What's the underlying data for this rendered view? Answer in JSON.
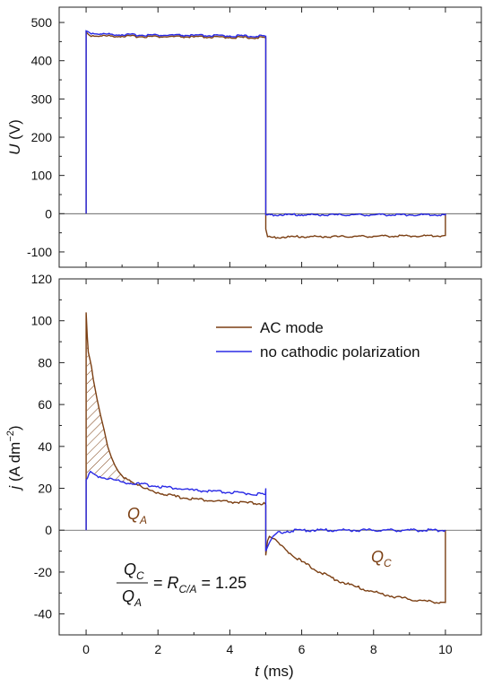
{
  "chart_data": [
    {
      "type": "line",
      "panel": "top",
      "ylabel": "U (V)",
      "ylabel_main": "U",
      "ylabel_unit": " (V)",
      "xlim": [
        -0.75,
        11
      ],
      "ylim": [
        -140,
        540
      ],
      "yticks": [
        -100,
        0,
        100,
        200,
        300,
        400,
        500
      ],
      "ytick_labels": [
        "-100",
        "0",
        "100",
        "200",
        "300",
        "400",
        "500"
      ],
      "xticks": [
        0,
        2,
        4,
        6,
        8,
        10
      ],
      "zero_line": true,
      "series": [
        {
          "key": "ac",
          "color": "#7b3f13",
          "x": [
            0,
            0,
            0.05,
            0.1,
            0.4,
            1.0,
            2.0,
            3.0,
            4.0,
            4.99,
            5.0,
            5.0,
            5.05,
            5.2,
            6.0,
            7.0,
            8.0,
            9.0,
            9.9,
            9.99,
            10.0,
            10.0
          ],
          "y": [
            0,
            475,
            470,
            466,
            465,
            464,
            463,
            462,
            461,
            460,
            460,
            -40,
            -60,
            -62,
            -60,
            -60,
            -59,
            -58,
            -58,
            -57,
            -57,
            0
          ]
        },
        {
          "key": "nocp",
          "color": "#2a2ae6",
          "x": [
            0,
            0,
            0.05,
            0.1,
            0.4,
            1.0,
            2.0,
            3.0,
            4.0,
            4.99,
            5.0,
            5.0,
            5.05,
            6.0,
            7.0,
            8.0,
            9.0,
            9.99,
            10.0,
            10.0
          ],
          "y": [
            0,
            478,
            476,
            473,
            470,
            468,
            467,
            466,
            465,
            464,
            464,
            -3,
            -3,
            -3,
            -3,
            -3,
            -3,
            -3,
            -3,
            0
          ]
        }
      ]
    },
    {
      "type": "line",
      "panel": "bottom",
      "xlabel": "t (ms)",
      "xlabel_main": "t",
      "xlabel_unit": " (ms)",
      "ylabel": "j (A dm−2)",
      "ylabel_main": "j",
      "ylabel_unit": " (A dm",
      "ylabel_sup": "−2",
      "ylabel_close": ")",
      "xlim": [
        -0.75,
        11
      ],
      "ylim": [
        -50,
        120
      ],
      "yticks": [
        -40,
        -20,
        0,
        20,
        40,
        60,
        80,
        100,
        120
      ],
      "ytick_labels": [
        "-40",
        "-20",
        "0",
        "20",
        "40",
        "60",
        "80",
        "100",
        "120"
      ],
      "xticks": [
        0,
        2,
        4,
        6,
        8,
        10
      ],
      "xtick_labels": [
        "0",
        "2",
        "4",
        "6",
        "8",
        "10"
      ],
      "zero_line": true,
      "series": [
        {
          "key": "ac",
          "name": "AC mode",
          "color": "#7b3f13",
          "x": [
            0,
            0,
            0.03,
            0.06,
            0.1,
            0.15,
            0.2,
            0.3,
            0.4,
            0.5,
            0.6,
            0.7,
            0.8,
            0.9,
            1.0,
            1.2,
            1.4,
            1.6,
            1.8,
            2.0,
            2.5,
            3.0,
            3.5,
            4.0,
            4.5,
            4.99,
            5.0,
            5.0,
            5.05,
            5.1,
            5.2,
            5.4,
            5.6,
            6.0,
            6.5,
            7.0,
            7.5,
            8.0,
            8.5,
            9.0,
            9.5,
            9.99,
            10.0,
            10.0
          ],
          "y": [
            0,
            104,
            93,
            85,
            82,
            78,
            72,
            63,
            55,
            48,
            40,
            35,
            31,
            28,
            26,
            24,
            22,
            20,
            19,
            18,
            16,
            15,
            14,
            13.5,
            13,
            12.5,
            12,
            -12,
            -5,
            -3,
            -4,
            -7,
            -10,
            -15,
            -20,
            -24,
            -27,
            -29.5,
            -31.5,
            -33,
            -34,
            -34.5,
            -34.5,
            0
          ]
        },
        {
          "key": "nocp",
          "name": "no cathodic polarization",
          "color": "#2a2ae6",
          "x": [
            0,
            0,
            0.04,
            0.08,
            0.12,
            0.2,
            0.3,
            0.5,
            0.8,
            1.0,
            1.5,
            2.0,
            2.5,
            3.0,
            3.5,
            4.0,
            4.5,
            4.99,
            5.0,
            5.0,
            5.1,
            5.2,
            5.3,
            5.6,
            6.0,
            7.0,
            8.0,
            9.0,
            10.0,
            10.0
          ],
          "y": [
            0,
            24,
            25,
            27,
            28,
            27,
            26,
            25,
            24,
            23,
            22,
            21,
            20,
            19,
            18.5,
            18,
            17.5,
            17,
            20,
            -10,
            -6,
            -3,
            -1.5,
            -0.5,
            0,
            0,
            0,
            0,
            0,
            0
          ]
        }
      ],
      "legend_position": "top-right",
      "annotations": {
        "qa_main": "Q",
        "qa_sub": "A",
        "qc_main": "Q",
        "qc_sub": "C",
        "frac_num_main": "Q",
        "frac_num_sub": "C",
        "frac_den_main": "Q",
        "frac_den_sub": "A",
        "eq_prefix": " = ",
        "ratio_main": "R",
        "ratio_sub": "C/A",
        "ratio_value": " = 1.25"
      }
    }
  ],
  "colors": {
    "ac": "#7b3f13",
    "nocp": "#2a2ae6",
    "hatch": "#7b3f13"
  }
}
